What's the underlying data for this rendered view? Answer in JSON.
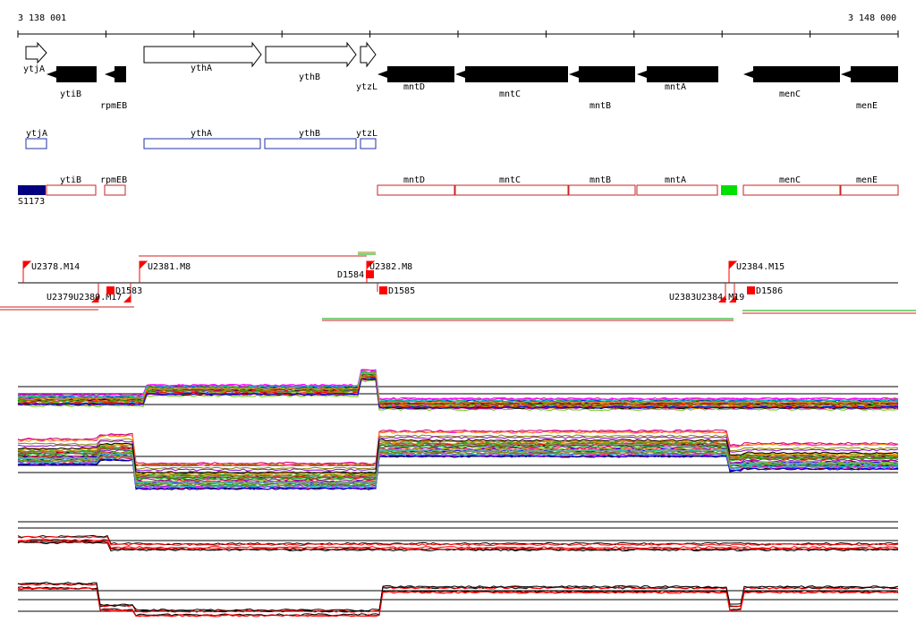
{
  "ruler": {
    "start_label": "3 138 001",
    "end_label": "3 148 000"
  },
  "colors": {
    "gene_fill_forward": "#ffffff",
    "gene_fill_reverse": "#000000",
    "cds_outline_forward": "#2233aa",
    "cds_outline_reverse": "#cc2222",
    "s_block": "#000080",
    "green_block": "#00e000",
    "marker": "#ff0000"
  },
  "genes_forward": [
    {
      "label": "ytjA"
    },
    {
      "label": "ythA"
    },
    {
      "label": "ythB"
    },
    {
      "label": "ytzL"
    }
  ],
  "genes_reverse": [
    {
      "label": "ytiB"
    },
    {
      "label": "rpmEB"
    },
    {
      "label": "mntD"
    },
    {
      "label": "mntC"
    },
    {
      "label": "mntB"
    },
    {
      "label": "mntA"
    },
    {
      "label": "menC"
    },
    {
      "label": "menE"
    }
  ],
  "cds_forward": [
    {
      "label": "ytjA"
    },
    {
      "label": "ythA"
    },
    {
      "label": "ythB"
    },
    {
      "label": "ytzL"
    }
  ],
  "cds_reverse": [
    {
      "label": "ytiB"
    },
    {
      "label": "rpmEB"
    },
    {
      "label": "mntD"
    },
    {
      "label": "mntC"
    },
    {
      "label": "mntB"
    },
    {
      "label": "mntA"
    },
    {
      "label": "menC"
    },
    {
      "label": "menE"
    }
  ],
  "s_block_label": "S1173",
  "upstream_markers": [
    {
      "label": "U2378.M14"
    },
    {
      "label": "U2381.M8"
    },
    {
      "label": "U2382.M8"
    },
    {
      "label": "U2384.M15"
    },
    {
      "label": "U2379U2380.M17"
    },
    {
      "label": "U2383U2384.M19"
    }
  ],
  "downstream_markers": [
    {
      "label": "D1583"
    },
    {
      "label": "D1584"
    },
    {
      "label": "D1585"
    },
    {
      "label": "D1586"
    }
  ]
}
